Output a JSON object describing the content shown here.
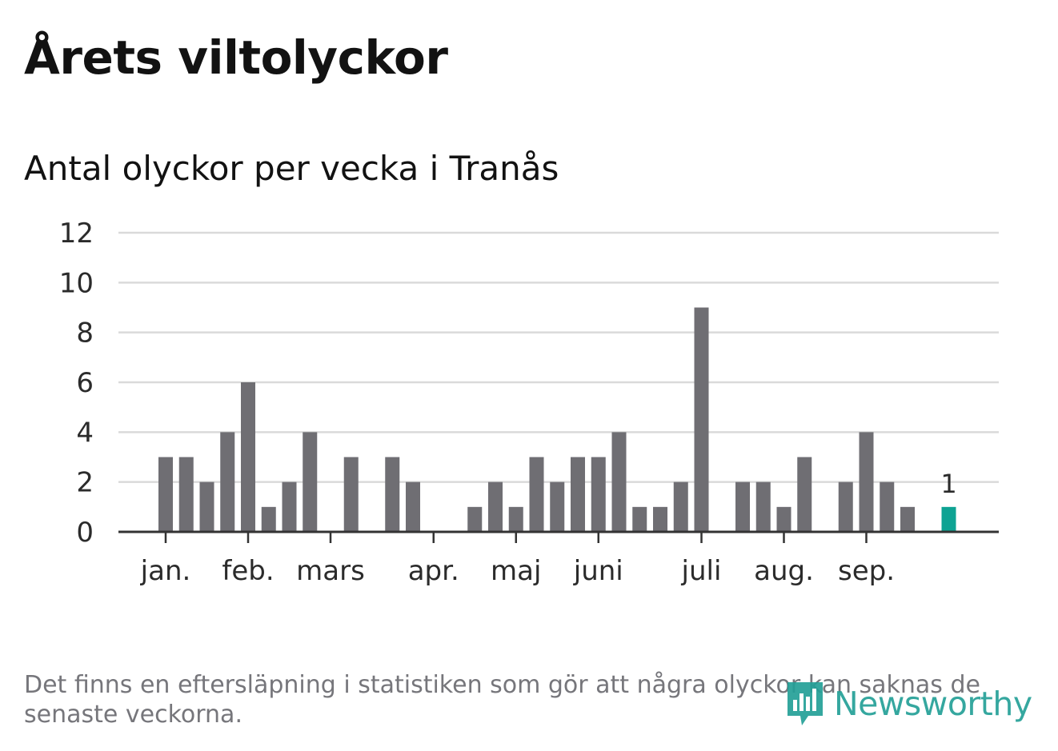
{
  "header": {
    "title": "Årets viltolyckor",
    "subtitle": "Antal olyckor per vecka i Tranås"
  },
  "footnote": "Det finns en eftersläpning i statistiken som gör att några olyckor kan saknas de senaste veckorna.",
  "logo": {
    "text": "Newsworthy",
    "icon": "newsworthy-logo-icon"
  },
  "colors": {
    "bar": "#6f6e73",
    "highlight": "#0ea393",
    "grid": "#dadada",
    "axis": "#333333",
    "text": "#2b2b2b",
    "brand": "#24a097"
  },
  "chart_data": {
    "type": "bar",
    "title": "Antal olyckor per vecka i Tranås",
    "xlabel": "",
    "ylabel": "",
    "ylim": [
      0,
      12
    ],
    "yticks": [
      0,
      2,
      4,
      6,
      8,
      10,
      12
    ],
    "grid": true,
    "values": [
      3,
      3,
      2,
      4,
      6,
      1,
      2,
      4,
      0,
      3,
      0,
      3,
      2,
      0,
      0,
      1,
      2,
      1,
      3,
      2,
      3,
      3,
      4,
      1,
      1,
      2,
      9,
      0,
      2,
      2,
      1,
      3,
      0,
      2,
      4,
      2,
      1,
      0,
      1
    ],
    "highlight_index": 38,
    "highlight_label": "1",
    "month_ticks": [
      {
        "label": "jan.",
        "week": 0.5
      },
      {
        "label": "feb.",
        "week": 4.5
      },
      {
        "label": "mars",
        "week": 8.5
      },
      {
        "label": "apr.",
        "week": 13.5
      },
      {
        "label": "maj",
        "week": 17.5
      },
      {
        "label": "juni",
        "week": 21.5
      },
      {
        "label": "juli",
        "week": 26.5
      },
      {
        "label": "aug.",
        "week": 30.5
      },
      {
        "label": "sep.",
        "week": 34.5
      }
    ]
  }
}
